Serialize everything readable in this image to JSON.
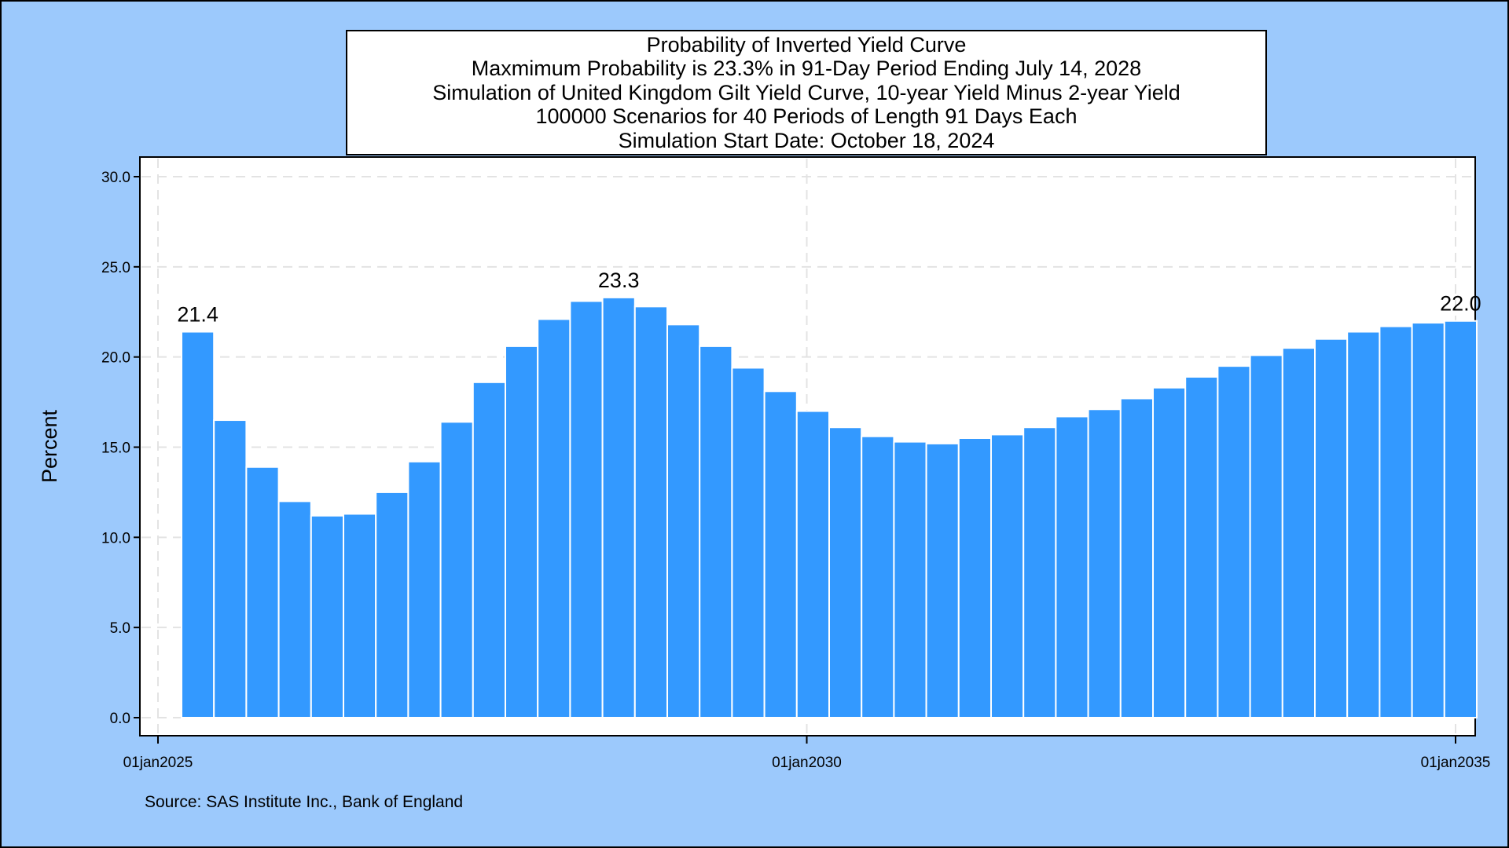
{
  "chart_data": {
    "type": "bar",
    "title_lines": [
      "Probability of Inverted Yield Curve",
      "Maxmimum Probability is 23.3% in 91-Day Period Ending July 14, 2028",
      "Simulation of United Kingdom Gilt Yield Curve, 10-year Yield Minus 2-year Yield",
      "100000 Scenarios for 40 Periods of Length 91 Days Each",
      "Simulation Start Date: October 18, 2024"
    ],
    "ylabel": "Percent",
    "ylim": [
      0,
      30
    ],
    "yticks": [
      "0.0",
      "5.0",
      "10.0",
      "15.0",
      "20.0",
      "25.0",
      "30.0"
    ],
    "xticks": [
      "01jan2025",
      "01jan2030",
      "01jan2035"
    ],
    "x_range": [
      "2025-01-01",
      "2035-01-01"
    ],
    "grid": true,
    "bar_color": "#3399ff",
    "bar_edge_color": "#ffffff",
    "values": [
      21.4,
      16.5,
      13.9,
      12.0,
      11.2,
      11.3,
      12.5,
      14.2,
      16.4,
      18.6,
      20.6,
      22.1,
      23.1,
      23.3,
      22.8,
      21.8,
      20.6,
      19.4,
      18.1,
      17.0,
      16.1,
      15.6,
      15.3,
      15.2,
      15.5,
      15.7,
      16.1,
      16.7,
      17.1,
      17.7,
      18.3,
      18.9,
      19.5,
      20.1,
      20.5,
      21.0,
      21.4,
      21.7,
      21.9,
      22.0
    ],
    "annotations": [
      {
        "index": 0,
        "text": "21.4"
      },
      {
        "index": 13,
        "text": "23.3"
      },
      {
        "index": 39,
        "text": "22.0"
      }
    ]
  },
  "source_note": "Source: SAS Institute Inc., Bank of England"
}
